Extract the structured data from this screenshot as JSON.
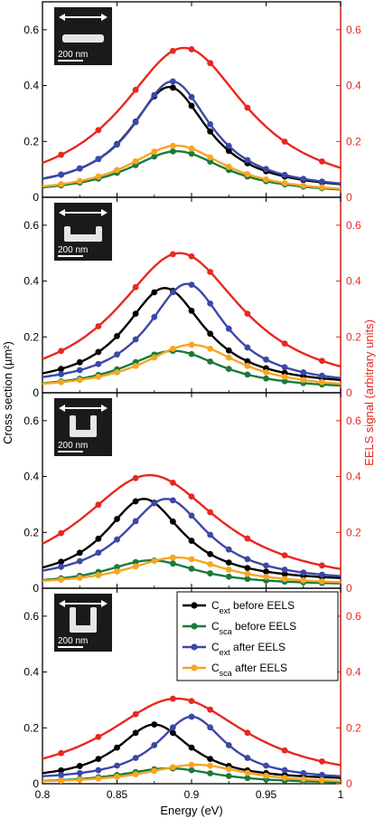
{
  "chart_data": {
    "type": "line",
    "xlabel": "Energy (eV)",
    "ylabel_left": "Cross section (µm²)",
    "ylabel_right": "EELS signal (arbitrary units)",
    "xlim": [
      0.8,
      1.0
    ],
    "x_ticks": [
      "0.8",
      "0.85",
      "0.9",
      "0.95",
      "1"
    ],
    "ylim": [
      0,
      0.7
    ],
    "y_ticks": [
      "0",
      "0.2",
      "0.4",
      "0.6"
    ],
    "colors": {
      "cext_before": "#000000",
      "csca_before": "#1b7a3a",
      "cext_after": "#3a48a8",
      "csca_after": "#f5a623",
      "eels": "#e8281e"
    },
    "legend": {
      "position": "panel-4-top-right",
      "entries": [
        {
          "key": "cext_before",
          "main": "C",
          "sub": "ext",
          "rest": " before EELS"
        },
        {
          "key": "csca_before",
          "main": "C",
          "sub": "sca",
          "rest": " before EELS"
        },
        {
          "key": "cext_after",
          "main": "C",
          "sub": "ext",
          "rest": " after EELS"
        },
        {
          "key": "csca_after",
          "main": "C",
          "sub": "sca",
          "rest": " after EELS"
        }
      ]
    },
    "scalebar_label": "200 nm",
    "marker_x": [
      0.8125,
      0.825,
      0.8375,
      0.85,
      0.8625,
      0.875,
      0.8875,
      0.9,
      0.9125,
      0.925,
      0.9375,
      0.95,
      0.9625,
      0.975,
      0.9875
    ],
    "panels": [
      {
        "shape": "rod",
        "eels_x": [
          0.8125,
          0.8375,
          0.8625,
          0.8875,
          0.9,
          0.9125,
          0.9375,
          0.9625,
          0.9875
        ],
        "series": [
          {
            "key": "cext_before",
            "peak_x": 0.885,
            "peak_y": 0.395,
            "width": 0.032,
            "base": 0.02
          },
          {
            "key": "cext_after",
            "peak_x": 0.887,
            "peak_y": 0.415,
            "width": 0.032,
            "base": 0.02
          },
          {
            "key": "csca_before",
            "peak_x": 0.89,
            "peak_y": 0.165,
            "width": 0.04,
            "base": 0.01
          },
          {
            "key": "csca_after",
            "peak_x": 0.89,
            "peak_y": 0.185,
            "width": 0.04,
            "base": 0.01
          },
          {
            "key": "eels",
            "peak_x": 0.895,
            "peak_y": 0.535,
            "width": 0.052,
            "base": 0.0
          }
        ]
      },
      {
        "shape": "u-shallow",
        "eels_x": [
          0.8125,
          0.8375,
          0.8625,
          0.8875,
          0.9,
          0.9125,
          0.9375,
          0.9625,
          0.9875
        ],
        "series": [
          {
            "key": "cext_before",
            "peak_x": 0.882,
            "peak_y": 0.375,
            "width": 0.033,
            "base": 0.02
          },
          {
            "key": "cext_after",
            "peak_x": 0.897,
            "peak_y": 0.39,
            "width": 0.032,
            "base": 0.02
          },
          {
            "key": "csca_before",
            "peak_x": 0.888,
            "peak_y": 0.15,
            "width": 0.04,
            "base": 0.01
          },
          {
            "key": "csca_after",
            "peak_x": 0.9,
            "peak_y": 0.172,
            "width": 0.04,
            "base": 0.01
          },
          {
            "key": "eels",
            "peak_x": 0.892,
            "peak_y": 0.5,
            "width": 0.052,
            "base": 0.0
          }
        ]
      },
      {
        "shape": "u-deep",
        "eels_x": [
          0.8125,
          0.8375,
          0.8625,
          0.8875,
          0.9,
          0.9125,
          0.9375,
          0.9625,
          0.9875
        ],
        "series": [
          {
            "key": "cext_before",
            "peak_x": 0.868,
            "peak_y": 0.32,
            "width": 0.032,
            "base": 0.02
          },
          {
            "key": "cext_after",
            "peak_x": 0.883,
            "peak_y": 0.32,
            "width": 0.034,
            "base": 0.02
          },
          {
            "key": "csca_before",
            "peak_x": 0.873,
            "peak_y": 0.1,
            "width": 0.038,
            "base": 0.01
          },
          {
            "key": "csca_after",
            "peak_x": 0.89,
            "peak_y": 0.11,
            "width": 0.04,
            "base": 0.01
          },
          {
            "key": "eels",
            "peak_x": 0.872,
            "peak_y": 0.405,
            "width": 0.058,
            "base": 0.0
          }
        ]
      },
      {
        "shape": "u-deeper",
        "eels_x": [
          0.8125,
          0.8375,
          0.8625,
          0.8875,
          0.9,
          0.9125,
          0.9375,
          0.9625,
          0.9875
        ],
        "series": [
          {
            "key": "cext_before",
            "peak_x": 0.875,
            "peak_y": 0.212,
            "width": 0.03,
            "base": 0.01
          },
          {
            "key": "cext_after",
            "peak_x": 0.9,
            "peak_y": 0.24,
            "width": 0.028,
            "base": 0.01
          },
          {
            "key": "csca_before",
            "peak_x": 0.885,
            "peak_y": 0.055,
            "width": 0.04,
            "base": 0.0
          },
          {
            "key": "csca_after",
            "peak_x": 0.903,
            "peak_y": 0.068,
            "width": 0.04,
            "base": 0.0
          },
          {
            "key": "eels",
            "peak_x": 0.89,
            "peak_y": 0.305,
            "width": 0.058,
            "base": 0.0
          }
        ]
      }
    ]
  }
}
